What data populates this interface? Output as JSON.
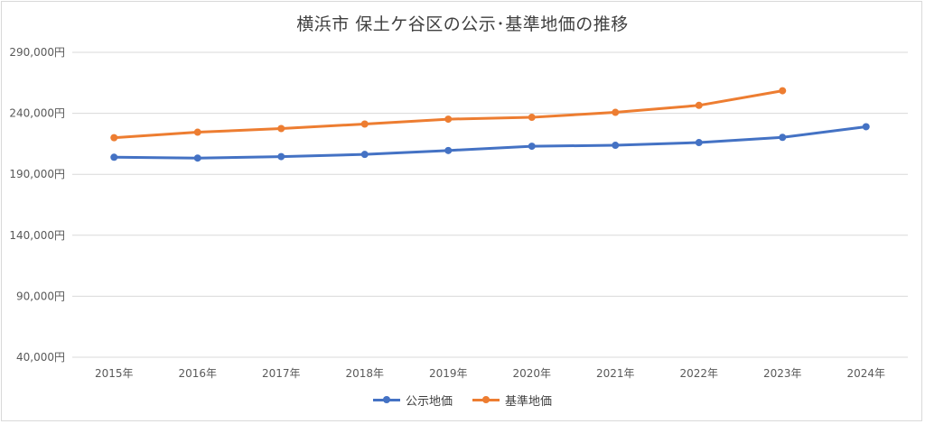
{
  "chart_data": {
    "type": "line",
    "title": "横浜市 保土ケ谷区の公示･基準地価の推移",
    "categories": [
      "2015年",
      "2016年",
      "2017年",
      "2018年",
      "2019年",
      "2020年",
      "2021年",
      "2022年",
      "2023年",
      "2024年"
    ],
    "ylim": [
      40000,
      290000
    ],
    "yticks": [
      "290,000円",
      "240,000円",
      "190,000円",
      "140,000円",
      "90,000円",
      "40,000円"
    ],
    "ytick_values": [
      290000,
      240000,
      190000,
      140000,
      90000,
      40000
    ],
    "grid": true,
    "legend_position": "bottom",
    "series": [
      {
        "name": "公示地価",
        "color": "#4472c4",
        "values": [
          204000,
          203300,
          204500,
          206300,
          209500,
          213000,
          213800,
          216000,
          220300,
          229000
        ]
      },
      {
        "name": "基準地価",
        "color": "#ed7d31",
        "values": [
          220000,
          224500,
          227500,
          231200,
          235200,
          236700,
          240800,
          246500,
          258500,
          null
        ]
      }
    ]
  }
}
